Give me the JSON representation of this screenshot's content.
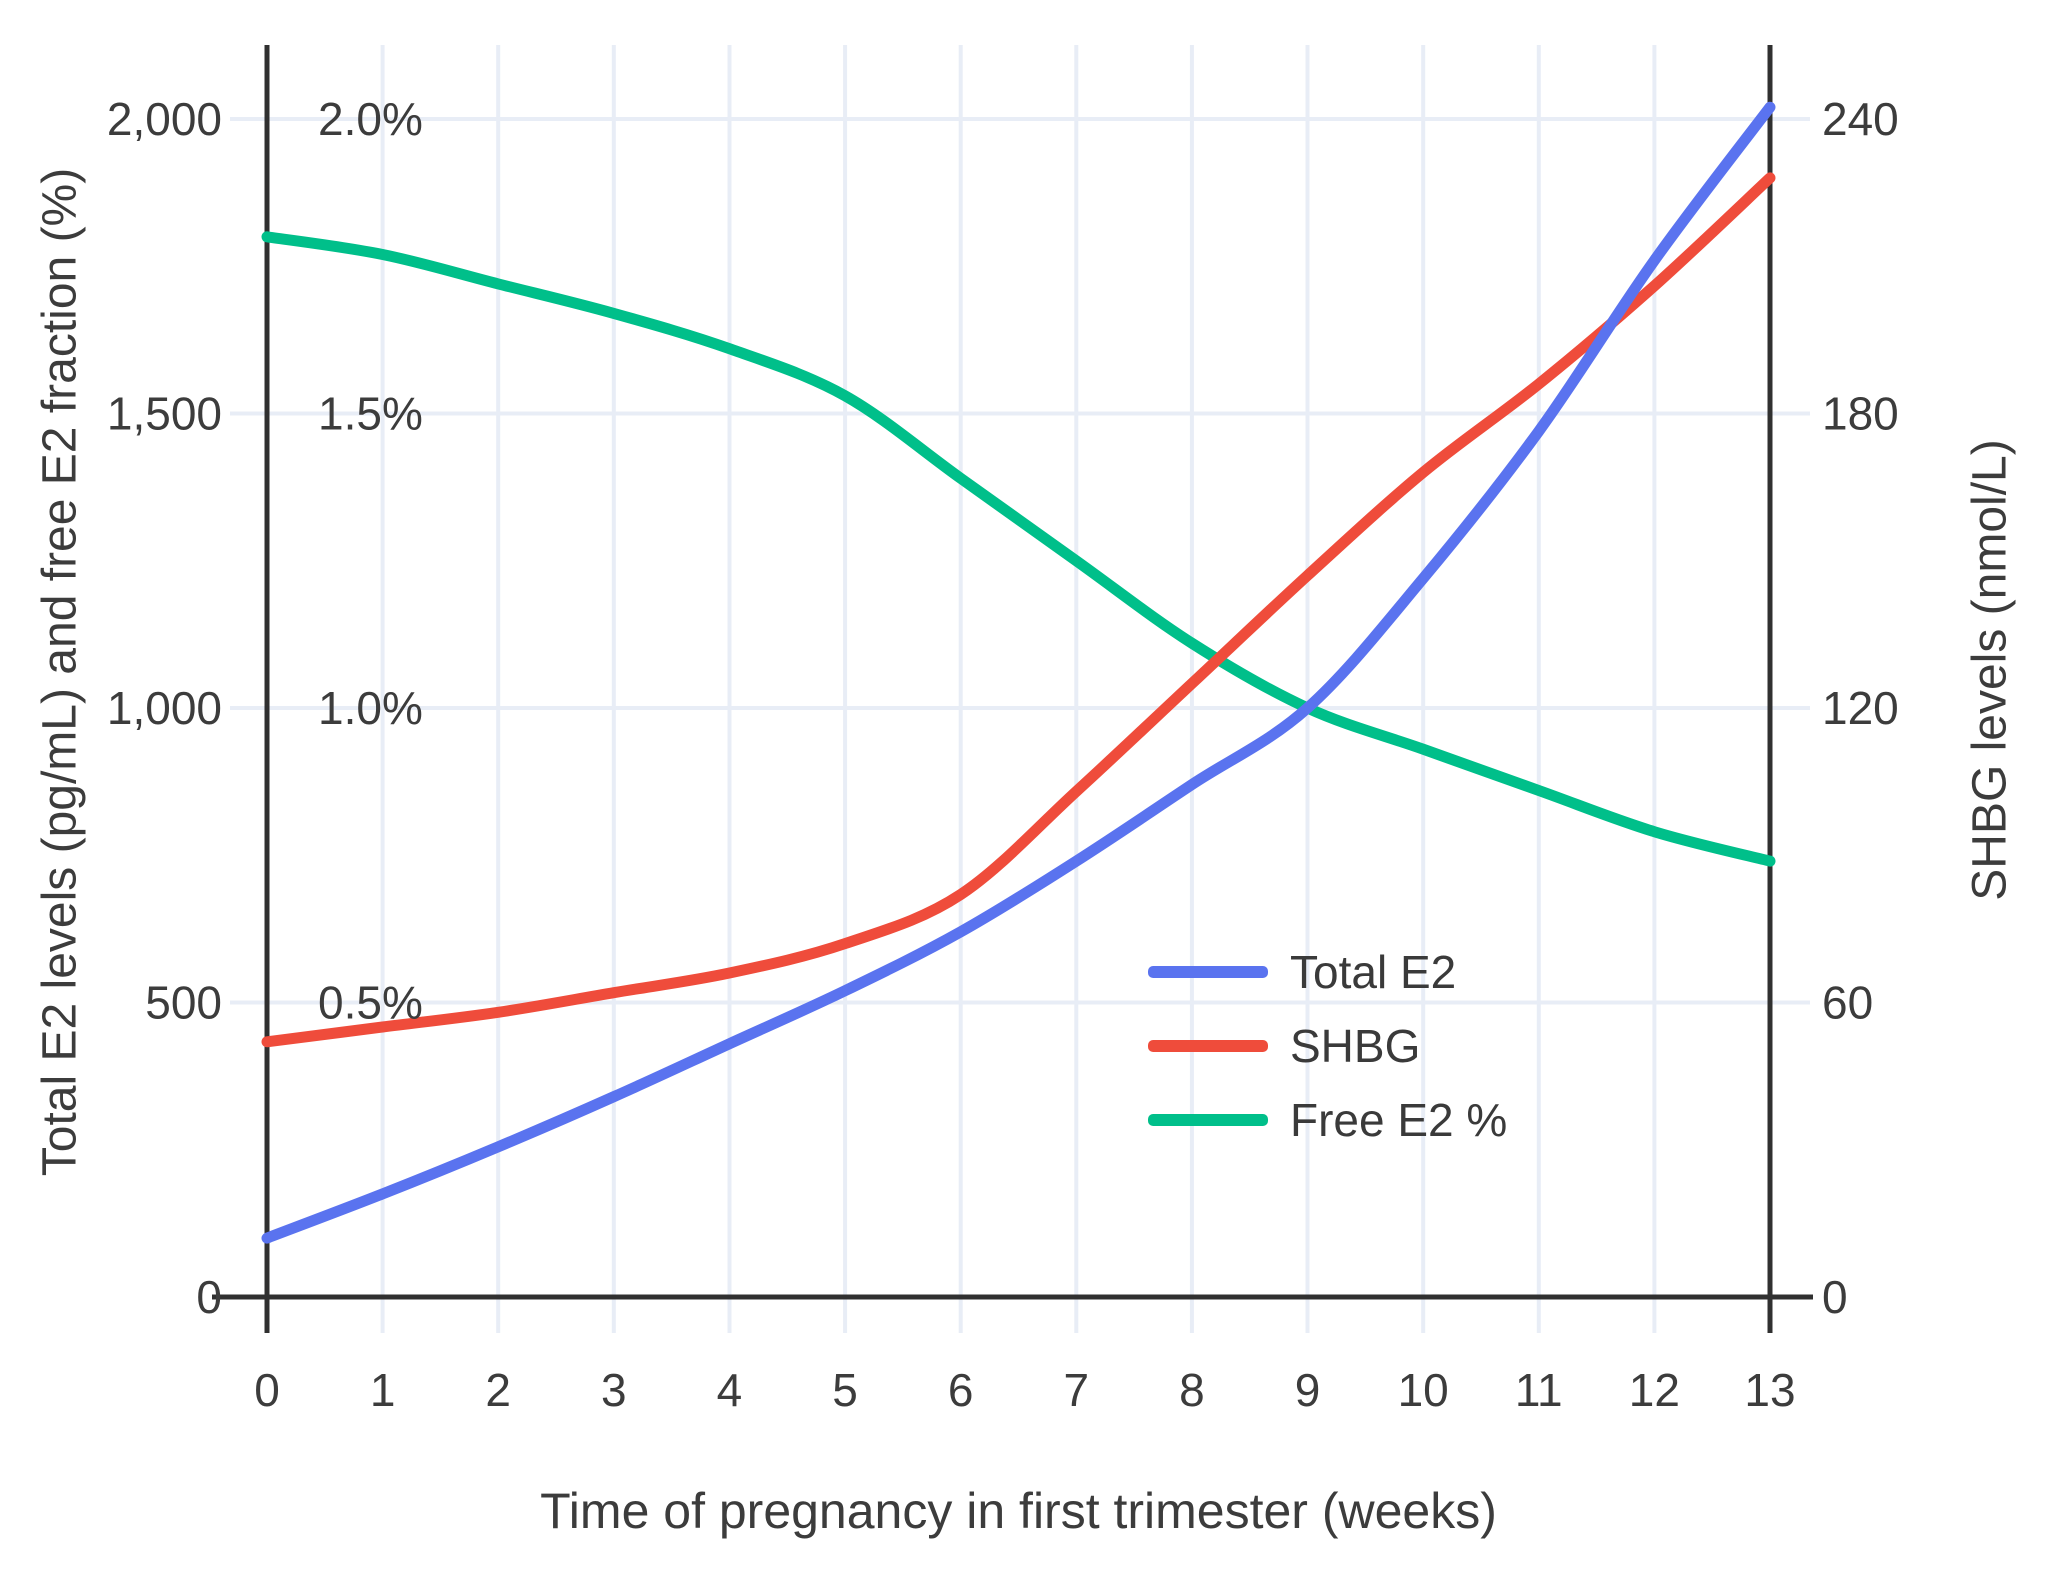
{
  "figure": {
    "x_axis": {
      "title": "Time of pregnancy in first trimester (weeks)",
      "tick_labels": [
        "0",
        "1",
        "2",
        "3",
        "4",
        "5",
        "6",
        "7",
        "8",
        "9",
        "10",
        "11",
        "12",
        "13"
      ]
    },
    "left_axis": {
      "title": "Total E2 levels (pg/mL) and free E2 fraction (%)",
      "value_ticks": [
        {
          "label": "0",
          "value": 0
        },
        {
          "label": "500",
          "value": 500
        },
        {
          "label": "1,000",
          "value": 1000
        },
        {
          "label": "1,500",
          "value": 1500
        },
        {
          "label": "2,000",
          "value": 2000
        }
      ],
      "percent_ticks": [
        {
          "label": "0.5%",
          "value": 500
        },
        {
          "label": "1.0%",
          "value": 1000
        },
        {
          "label": "1.5%",
          "value": 1500
        },
        {
          "label": "2.0%",
          "value": 2000
        }
      ]
    },
    "right_axis": {
      "title": "SHBG levels (nmol/L)",
      "ticks": [
        {
          "label": "0",
          "value": 0
        },
        {
          "label": "60",
          "value": 60
        },
        {
          "label": "120",
          "value": 120
        },
        {
          "label": "180",
          "value": 180
        },
        {
          "label": "240",
          "value": 240
        }
      ]
    },
    "legend": [
      {
        "label": "Total E2",
        "color": "#5A73EF"
      },
      {
        "label": "SHBG",
        "color": "#EF4C3B"
      },
      {
        "label": "Free E2 %",
        "color": "#00BF8A"
      }
    ]
  },
  "chart_data": {
    "type": "line",
    "title": "",
    "xlabel": "Time of pregnancy in first trimester (weeks)",
    "x": [
      0,
      1,
      2,
      3,
      4,
      5,
      6,
      7,
      8,
      9,
      10,
      11,
      12,
      13
    ],
    "series": [
      {
        "name": "Total E2",
        "axis": "left",
        "units": "pg/mL",
        "color": "#5A73EF",
        "values": [
          100,
          175,
          255,
          340,
          430,
          520,
          620,
          740,
          870,
          1000,
          1220,
          1470,
          1760,
          2020
        ]
      },
      {
        "name": "SHBG",
        "axis": "right",
        "units": "nmol/L",
        "color": "#EF4C3B",
        "values": [
          52,
          55,
          58,
          62,
          66,
          72,
          82,
          103,
          125,
          147,
          168,
          186,
          206,
          228
        ]
      },
      {
        "name": "Free E2 %",
        "axis": "left-percent",
        "units": "%",
        "color": "#00BF8A",
        "values": [
          1.8,
          1.77,
          1.72,
          1.67,
          1.61,
          1.53,
          1.39,
          1.25,
          1.11,
          1.0,
          0.93,
          0.86,
          0.79,
          0.74
        ]
      }
    ],
    "left_ylim": [
      0,
      2000
    ],
    "left_percent_lim": [
      0,
      2.0
    ],
    "right_ylim": [
      0,
      240
    ],
    "x_range": [
      0,
      13
    ],
    "grid": true,
    "legend_position": "center-right-inside"
  },
  "colors": {
    "background": "#FFFFFF",
    "grid": "#E8EDF6",
    "axis_line": "#303030",
    "text": "#3C3C3C"
  }
}
